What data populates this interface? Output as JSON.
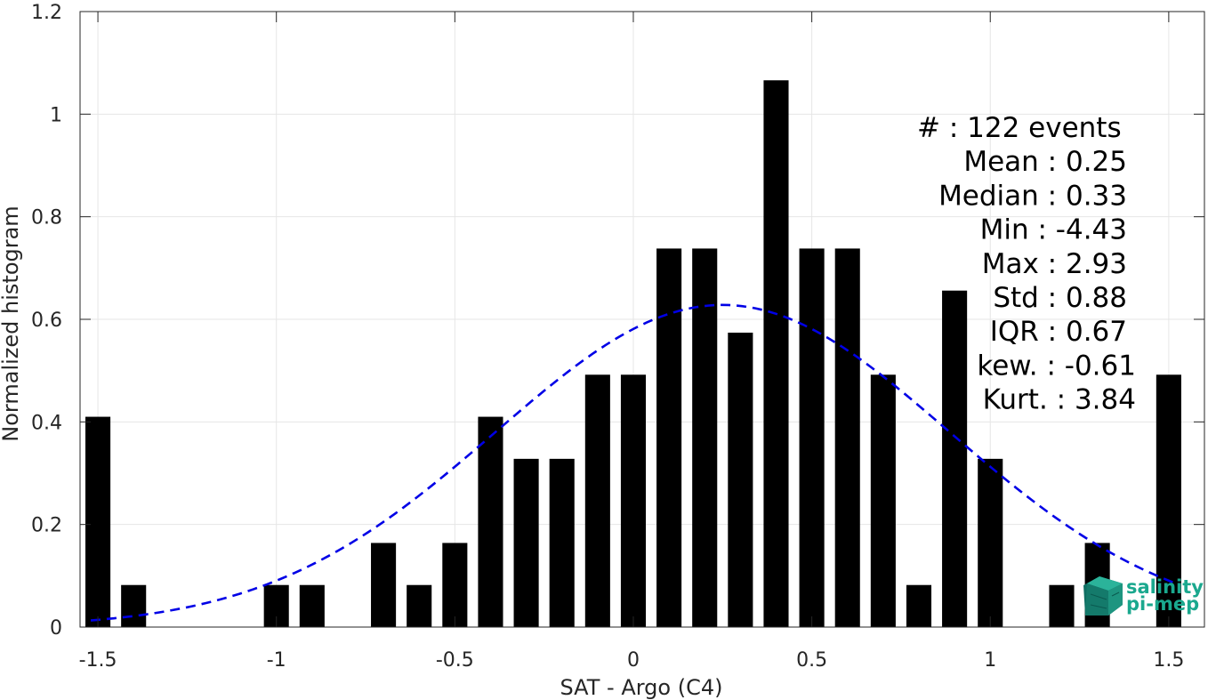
{
  "chart_data": {
    "type": "bar",
    "xlabel": "SAT - Argo (C4)",
    "ylabel": "Normalized histogram",
    "xlim": [
      -1.55,
      1.6
    ],
    "ylim": [
      0,
      1.2
    ],
    "xticks": [
      -1.5,
      -1,
      -0.5,
      0,
      0.5,
      1,
      1.5
    ],
    "xtick_labels": [
      "-1.5",
      "-1",
      "-0.5",
      "0",
      "0.5",
      "1",
      "1.5"
    ],
    "yticks": [
      0,
      0.2,
      0.4,
      0.6,
      0.8,
      1,
      1.2
    ],
    "ytick_labels": [
      "0",
      "0.2",
      "0.4",
      "0.6",
      "0.8",
      "1",
      "1.2"
    ],
    "grid": true,
    "bar_color": "#000000",
    "bars": {
      "x": [
        -1.5,
        -1.4,
        -1.3,
        -1.2,
        -1.1,
        -1.0,
        -0.9,
        -0.8,
        -0.7,
        -0.6,
        -0.5,
        -0.4,
        -0.3,
        -0.2,
        -0.1,
        0.0,
        0.1,
        0.2,
        0.3,
        0.4,
        0.5,
        0.6,
        0.7,
        0.8,
        0.9,
        1.0,
        1.1,
        1.2,
        1.3,
        1.5
      ],
      "values": [
        0.41,
        0.082,
        0,
        0,
        0,
        0.082,
        0.082,
        0,
        0.164,
        0.082,
        0.164,
        0.41,
        0.328,
        0.328,
        0.492,
        0.492,
        0.738,
        0.738,
        0.574,
        1.066,
        0.738,
        0.738,
        0.492,
        0.082,
        0.656,
        0.328,
        0,
        0.082,
        0.164,
        0.492
      ],
      "width": 0.07
    },
    "fit_curve": {
      "style": "dashed",
      "color": "#0000e6",
      "mean": 0.25,
      "std": 0.635,
      "peak": 0.628,
      "x_range": [
        -1.52,
        1.52
      ]
    },
    "stats": [
      {
        "label": "#  : 122 events",
        "align": "left"
      },
      {
        "label": "Mean : 0.25",
        "align": "right"
      },
      {
        "label": "Median : 0.33",
        "align": "right"
      },
      {
        "label": "Min : -4.43",
        "align": "right"
      },
      {
        "label": "Max : 2.93",
        "align": "right"
      },
      {
        "label": "Std : 0.88",
        "align": "right"
      },
      {
        "label": "IQR : 0.67",
        "align": "right"
      },
      {
        "label": "kew. : -0.61",
        "align": "right2"
      },
      {
        "label": "Kurt. : 3.84",
        "align": "right2"
      }
    ]
  },
  "logo": {
    "line1": "salinity",
    "line2": "pi-mep",
    "color": "#1aa88e"
  }
}
